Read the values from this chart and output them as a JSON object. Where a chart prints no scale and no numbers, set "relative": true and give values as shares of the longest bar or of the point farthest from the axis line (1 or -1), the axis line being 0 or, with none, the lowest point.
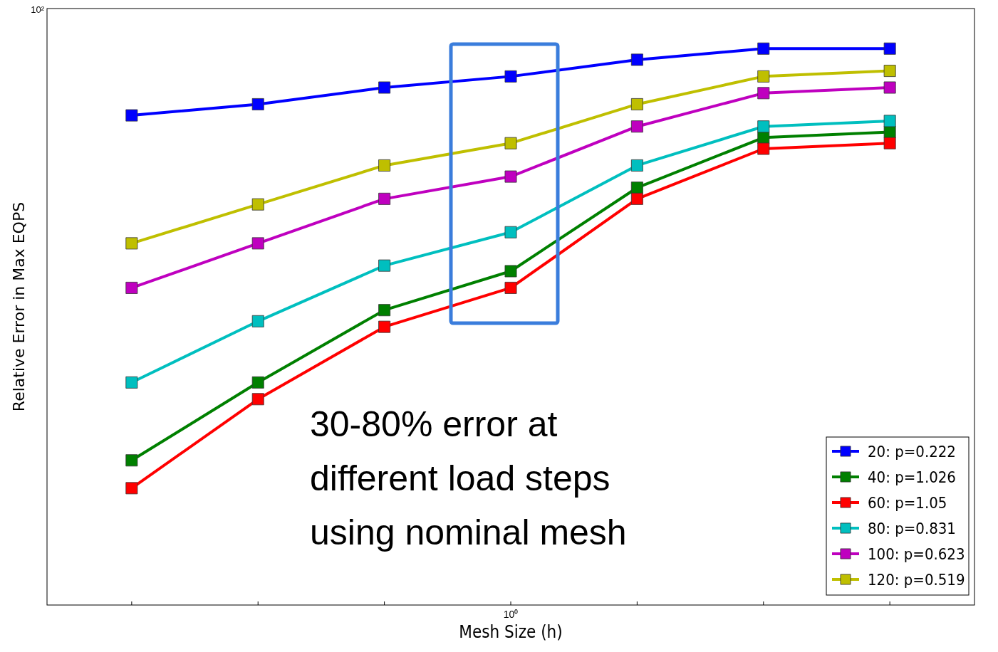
{
  "chart_data": {
    "type": "line",
    "xlabel": "Mesh Size (h)",
    "ylabel": "Relative Error in Max EQPS",
    "relative": true,
    "marker": "square",
    "line_style": "solid",
    "legend": "bottom right",
    "categories": [
      null,
      null,
      null,
      null,
      null,
      null,
      null
    ],
    "annotations": [
      "10²",
      "30-80% error at different load steps using nominal mesh",
      "10⁰"
    ],
    "series": [
      {
        "name": "20: p=0.222",
        "color": "#0000ff",
        "values": [
          0.88,
          0.9,
          0.93,
          0.95,
          0.98,
          1.0,
          1.0
        ]
      },
      {
        "name": "40: p=1.026",
        "color": "#008000",
        "values": [
          0.26,
          0.4,
          0.53,
          0.6,
          0.75,
          0.84,
          0.85
        ]
      },
      {
        "name": "60: p=1.05",
        "color": "#ff0000",
        "values": [
          0.21,
          0.37,
          0.5,
          0.57,
          0.73,
          0.82,
          0.83
        ]
      },
      {
        "name": "80: p=0.831",
        "color": "#00bfbf",
        "values": [
          0.4,
          0.51,
          0.61,
          0.67,
          0.79,
          0.86,
          0.87
        ]
      },
      {
        "name": "100: p=0.623",
        "color": "#bf00bf",
        "values": [
          0.57,
          0.65,
          0.73,
          0.77,
          0.86,
          0.92,
          0.93
        ]
      },
      {
        "name": "120: p=0.519",
        "color": "#bfbf00",
        "values": [
          0.65,
          0.72,
          0.79,
          0.83,
          0.9,
          0.95,
          0.96
        ]
      }
    ]
  }
}
